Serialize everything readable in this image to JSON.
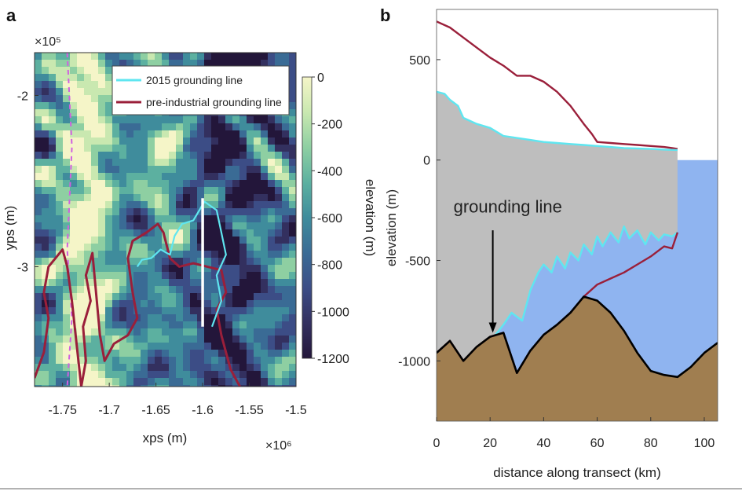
{
  "figure": {
    "panel_a_label": "a",
    "panel_b_label": "b"
  },
  "colors": {
    "grounding_2015": "#5FE6F0",
    "grounding_preindustrial": "#9A1F3A",
    "ice": "#BEBEBE",
    "ocean": "#8FB4F0",
    "bedrock": "#A07E50",
    "bed_line": "#000000"
  },
  "chart_data": [
    {
      "type": "heatmap",
      "panel": "a",
      "xlabel": "xps (m)",
      "ylabel": "yps (m)",
      "x_exponent": "×10⁶",
      "y_exponent": "×10⁵",
      "xlim": [
        -1.78,
        -1.5
      ],
      "ylim": [
        -3.7,
        -1.75
      ],
      "x_ticks": [
        "-1.75",
        "-1.7",
        "-1.65",
        "-1.6",
        "-1.55",
        "-1.5"
      ],
      "x_tick_values": [
        -1.75,
        -1.7,
        -1.65,
        -1.6,
        -1.55,
        -1.5
      ],
      "y_ticks": [
        "-2",
        "-3"
      ],
      "y_tick_values": [
        -2,
        -3
      ],
      "colorbar": {
        "label": "elevation (m)",
        "ticks": [
          "0",
          "-200",
          "-400",
          "-600",
          "-800",
          "-1000",
          "-1200"
        ],
        "range": [
          -1200,
          0
        ],
        "colormap": [
          "#F5F5C8",
          "#C9E8B0",
          "#8ECFA2",
          "#5CB0A0",
          "#3F8C9C",
          "#3A6B95",
          "#3C4D86",
          "#33305F",
          "#23163A"
        ]
      },
      "legend": {
        "placement": "top-right",
        "entries": [
          {
            "name": "2015 grounding line",
            "color": "#5FE6F0"
          },
          {
            "name": "pre-industrial grounding line",
            "color": "#9A1F3A"
          }
        ]
      },
      "transect": {
        "x": -1.6,
        "y": [
          -2.6,
          -3.35
        ],
        "color": "#FFFFFF"
      },
      "grounding_2015": [
        [
          -1.67,
          -3.0
        ],
        [
          -1.665,
          -2.96
        ],
        [
          -1.655,
          -2.95
        ],
        [
          -1.645,
          -2.9
        ],
        [
          -1.635,
          -2.93
        ],
        [
          -1.63,
          -2.82
        ],
        [
          -1.622,
          -2.75
        ],
        [
          -1.61,
          -2.73
        ],
        [
          -1.598,
          -2.62
        ],
        [
          -1.585,
          -2.67
        ],
        [
          -1.58,
          -2.8
        ],
        [
          -1.575,
          -2.93
        ],
        [
          -1.585,
          -3.05
        ],
        [
          -1.58,
          -3.2
        ],
        [
          -1.59,
          -3.35
        ]
      ],
      "grounding_preindustrial": [
        [
          -1.78,
          -3.65
        ],
        [
          -1.77,
          -3.5
        ],
        [
          -1.765,
          -3.3
        ],
        [
          -1.77,
          -3.15
        ],
        [
          -1.765,
          -3.0
        ],
        [
          -1.75,
          -2.9
        ],
        [
          -1.745,
          -3.0
        ],
        [
          -1.74,
          -3.2
        ],
        [
          -1.735,
          -3.45
        ],
        [
          -1.73,
          -3.7
        ],
        [
          -1.725,
          -3.55
        ],
        [
          -1.728,
          -3.35
        ],
        [
          -1.72,
          -3.2
        ],
        [
          -1.725,
          -3.05
        ],
        [
          -1.718,
          -2.92
        ],
        [
          -1.715,
          -3.1
        ],
        [
          -1.71,
          -3.4
        ],
        [
          -1.705,
          -3.55
        ],
        [
          -1.695,
          -3.45
        ],
        [
          -1.68,
          -3.4
        ],
        [
          -1.67,
          -3.3
        ],
        [
          -1.675,
          -3.15
        ],
        [
          -1.68,
          -2.95
        ],
        [
          -1.675,
          -2.85
        ],
        [
          -1.66,
          -2.8
        ],
        [
          -1.648,
          -2.75
        ],
        [
          -1.642,
          -2.8
        ],
        [
          -1.635,
          -2.95
        ],
        [
          -1.625,
          -3.0
        ],
        [
          -1.61,
          -2.98
        ],
        [
          -1.595,
          -3.0
        ],
        [
          -1.58,
          -3.02
        ],
        [
          -1.575,
          -3.15
        ],
        [
          -1.585,
          -3.25
        ],
        [
          -1.58,
          -3.4
        ],
        [
          -1.57,
          -3.6
        ],
        [
          -1.56,
          -3.7
        ]
      ],
      "dashed_contour": [
        [
          -1.745,
          -1.75
        ],
        [
          -1.74,
          -2.3
        ],
        [
          -1.745,
          -2.9
        ],
        [
          -1.74,
          -3.3
        ],
        [
          -1.745,
          -3.7
        ]
      ]
    },
    {
      "type": "area",
      "panel": "b",
      "xlabel": "distance along transect (km)",
      "ylabel": "elevation (m)",
      "xlim": [
        0,
        105
      ],
      "ylim": [
        -1300,
        750
      ],
      "x_ticks": [
        "0",
        "20",
        "40",
        "60",
        "80",
        "100"
      ],
      "x_tick_values": [
        0,
        20,
        40,
        60,
        80,
        100
      ],
      "y_ticks": [
        "500",
        "0",
        "-500",
        "-1000"
      ],
      "y_tick_values": [
        500,
        0,
        -500,
        -1000
      ],
      "annotation": {
        "text": "grounding line",
        "x": 21,
        "y_text": -230,
        "arrow_from": -350,
        "arrow_to": -860
      },
      "series": [
        {
          "name": "pre-industrial surface",
          "color": "#9A1F3A",
          "x": [
            0,
            5,
            10,
            15,
            20,
            25,
            30,
            35,
            40,
            45,
            50,
            55,
            58,
            60,
            65,
            70,
            75,
            80,
            85,
            88,
            90
          ],
          "y": [
            690,
            660,
            610,
            560,
            510,
            470,
            420,
            420,
            390,
            340,
            270,
            180,
            130,
            90,
            85,
            80,
            75,
            70,
            65,
            60,
            55
          ]
        },
        {
          "name": "2015 surface",
          "color": "#5FE6F0",
          "x": [
            0,
            3,
            5,
            8,
            10,
            15,
            20,
            25,
            30,
            35,
            40,
            45,
            50,
            55,
            60,
            65,
            70,
            75,
            80,
            85,
            90
          ],
          "y": [
            340,
            330,
            300,
            270,
            210,
            180,
            160,
            120,
            110,
            100,
            90,
            85,
            80,
            75,
            70,
            65,
            60,
            58,
            55,
            52,
            50
          ]
        },
        {
          "name": "2015 ice base",
          "color": "#5FE6F0",
          "x": [
            22,
            25,
            28,
            32,
            35,
            38,
            40,
            43,
            45,
            48,
            50,
            53,
            55,
            58,
            60,
            62,
            65,
            68,
            70,
            72,
            75,
            78,
            80,
            83,
            85,
            88,
            90
          ],
          "y": [
            -870,
            -820,
            -760,
            -800,
            -650,
            -560,
            -520,
            -560,
            -480,
            -540,
            -460,
            -500,
            -420,
            -470,
            -380,
            -430,
            -360,
            -410,
            -330,
            -390,
            -350,
            -420,
            -360,
            -400,
            -370,
            -380,
            -360
          ]
        },
        {
          "name": "pre-industrial ice base",
          "color": "#9A1F3A",
          "x": [
            0,
            5,
            10,
            15,
            20,
            25,
            30,
            35,
            40,
            45,
            50,
            55,
            60,
            65,
            70,
            75,
            80,
            85,
            88,
            90
          ],
          "y": [
            -960,
            -900,
            -1000,
            -930,
            -880,
            -860,
            -1060,
            -950,
            -870,
            -820,
            -760,
            -680,
            -620,
            -590,
            -560,
            -520,
            -480,
            -430,
            -440,
            -360
          ]
        },
        {
          "name": "bed",
          "color": "#000000",
          "x": [
            0,
            5,
            10,
            15,
            20,
            25,
            30,
            35,
            40,
            45,
            50,
            55,
            60,
            65,
            70,
            75,
            80,
            85,
            90,
            95,
            100,
            105
          ],
          "y": [
            -960,
            -900,
            -1000,
            -930,
            -880,
            -860,
            -1060,
            -950,
            -870,
            -820,
            -760,
            -680,
            -700,
            -760,
            -850,
            -960,
            -1050,
            -1070,
            -1080,
            -1030,
            -960,
            -910
          ]
        }
      ]
    }
  ]
}
